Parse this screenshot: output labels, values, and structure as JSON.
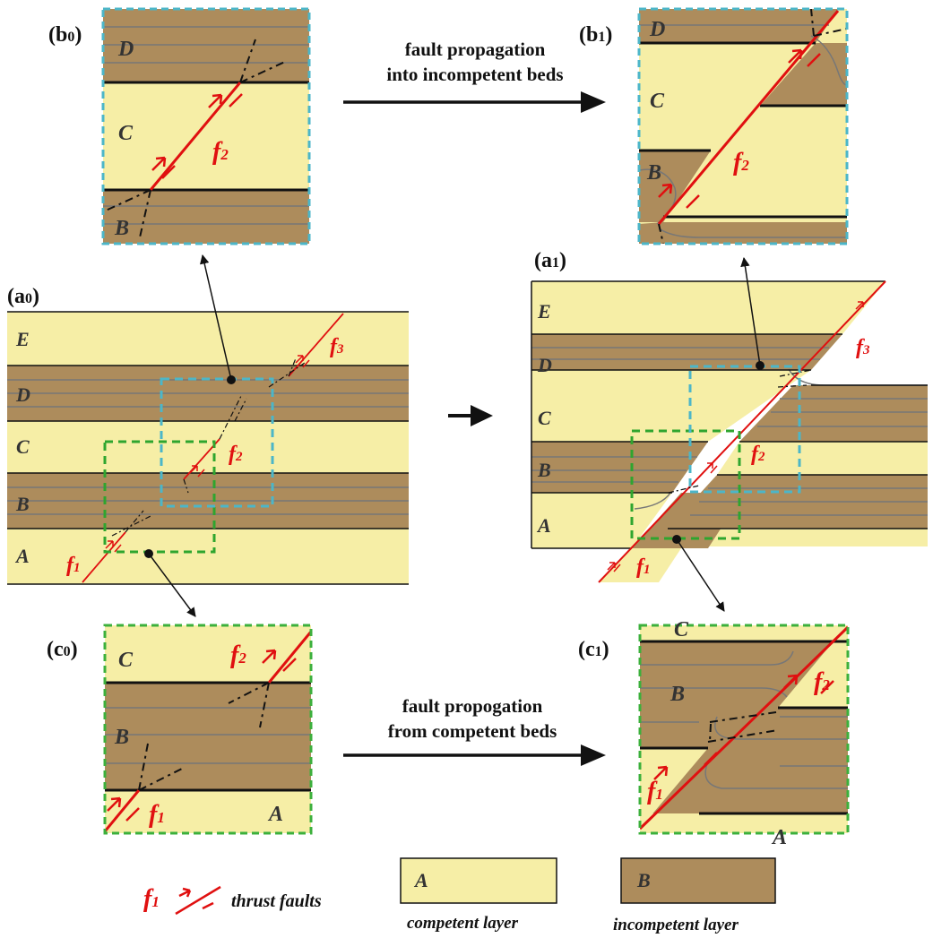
{
  "colors": {
    "competent": "#f6eea6",
    "incompetent": "#ad8c5c",
    "fault": "#e01010",
    "box_b": "#5fc8d8",
    "box_c": "#3cb03c"
  },
  "panels": {
    "a0": {
      "label_main": "(a",
      "label_sub": "0",
      "label_close": ")"
    },
    "a1": {
      "label_main": "(a",
      "label_sub": "1",
      "label_close": ")"
    },
    "b0": {
      "label_main": "(b",
      "label_sub": "0",
      "label_close": ")"
    },
    "b1": {
      "label_main": "(b",
      "label_sub": "1",
      "label_close": ")"
    },
    "c0": {
      "label_main": "(c",
      "label_sub": "0",
      "label_close": ")"
    },
    "c1": {
      "label_main": "(c",
      "label_sub": "1",
      "label_close": ")"
    }
  },
  "layers": {
    "a": "A",
    "b": "B",
    "c": "C",
    "d": "D",
    "e": "E"
  },
  "faults": {
    "f1": {
      "main": "f",
      "sub": "1"
    },
    "f2": {
      "main": "f",
      "sub": "2"
    },
    "f3": {
      "main": "f",
      "sub": "3"
    }
  },
  "captions": {
    "top_line1": "fault propagation",
    "top_line2": "into incompetent beds",
    "bottom_line1": "fault propogation",
    "bottom_line2": "from competent beds"
  },
  "legend": {
    "thrust_label": "thrust faults",
    "competent_letter": "A",
    "competent_label": "competent layer",
    "incompetent_letter": "B",
    "incompetent_label": "incompetent layer"
  }
}
